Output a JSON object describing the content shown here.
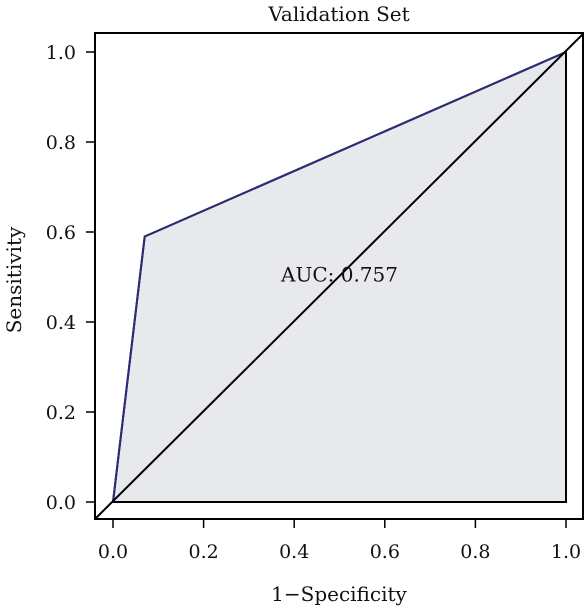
{
  "chart_data": {
    "type": "line",
    "title": "Validation Set",
    "xlabel": "1−Specificity",
    "ylabel": "Sensitivity",
    "xlim": [
      0.0,
      1.0
    ],
    "ylim": [
      0.0,
      1.0
    ],
    "xticks": [
      "0.0",
      "0.2",
      "0.4",
      "0.6",
      "0.8",
      "1.0"
    ],
    "yticks": [
      "0.0",
      "0.2",
      "0.4",
      "0.6",
      "0.8",
      "1.0"
    ],
    "series": [
      {
        "x": [
          0.0,
          0.07,
          1.0
        ],
        "y": [
          0.0,
          0.59,
          1.0
        ],
        "color": "#2b2b7a"
      }
    ],
    "reference_line": {
      "x": [
        0.0,
        1.0
      ],
      "y": [
        0.0,
        1.0
      ],
      "color": "#000000"
    },
    "area_fill": "#e8e9ec",
    "annotation": {
      "text": "AUC: 0.757",
      "x": 0.5,
      "y": 0.49
    },
    "grid": false
  }
}
